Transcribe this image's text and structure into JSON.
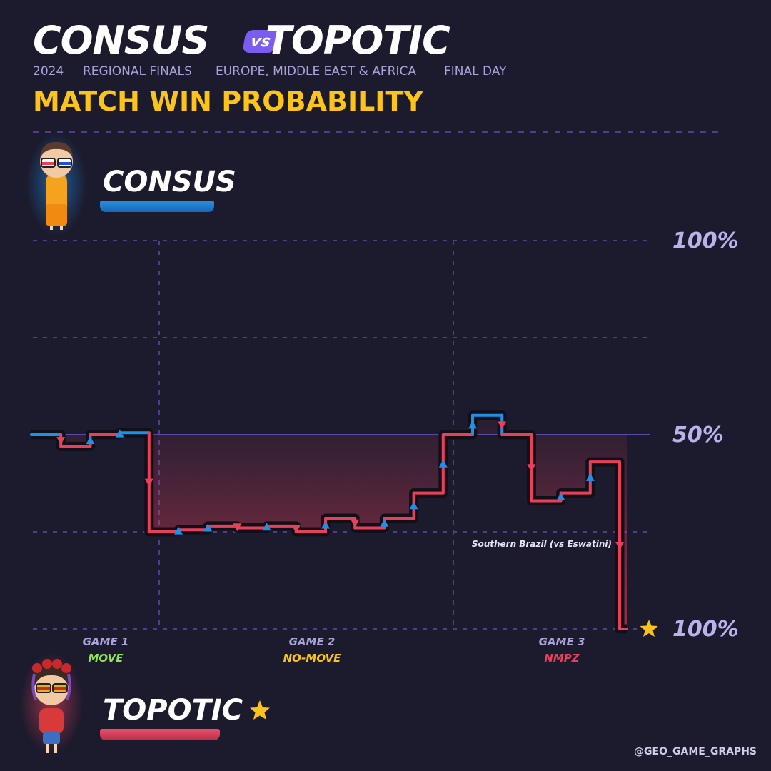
{
  "header": {
    "player1": "CONSUS",
    "vs": "vs",
    "player2": "TOPOTIC",
    "subtitle": [
      "2024",
      "REGIONAL FINALS",
      "EUROPE, MIDDLE EAST & AFRICA",
      "FINAL DAY"
    ],
    "title": "MATCH WIN PROBABILITY"
  },
  "players": {
    "top": {
      "name": "CONSUS",
      "color": "#1e90e8"
    },
    "bottom": {
      "name": "TOPOTIC",
      "color": "#e8405a",
      "winner_icon": "star-icon"
    }
  },
  "axis_labels": {
    "top": "100%",
    "mid": "50%",
    "bottom": "100%"
  },
  "games": [
    {
      "label": "GAME 1",
      "mode": "MOVE",
      "mode_color": "#8fe05b"
    },
    {
      "label": "GAME 2",
      "mode": "NO-MOVE",
      "mode_color": "#fcc418"
    },
    {
      "label": "GAME 3",
      "mode": "NMPZ",
      "mode_color": "#e8405a"
    }
  ],
  "annotation": "Southern Brazil (vs Eswatini)",
  "credit": "@GEO_GAME_GRAPHS",
  "colors": {
    "background": "#1c1b2e",
    "consus": "#1e90e8",
    "topotic": "#e8405a",
    "accent": "#fcc418"
  },
  "chart_data": {
    "type": "line",
    "description_axis": "Consus match win probability (%); 100 = Consus wins, 0 = Topotic wins",
    "ylim": [
      0,
      100
    ],
    "x": [
      0,
      1,
      2,
      3,
      4,
      5,
      6,
      7,
      8,
      9,
      10,
      11,
      12,
      13,
      14,
      15,
      16,
      17,
      18,
      19,
      20
    ],
    "values": [
      50,
      47,
      50,
      50.5,
      25,
      25.5,
      26.5,
      26,
      26.5,
      25,
      28.5,
      26,
      28.5,
      35,
      50,
      55,
      50,
      33,
      35,
      43,
      0
    ],
    "game_boundaries": [
      4,
      14
    ],
    "winner": "TOPOTIC"
  }
}
